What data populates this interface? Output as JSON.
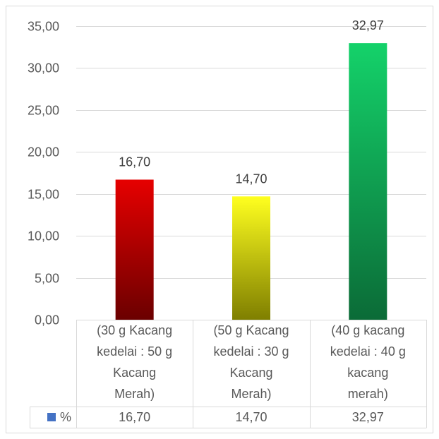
{
  "chart_data": {
    "type": "bar",
    "categories": [
      "(30 g Kacang kedelai : 50 g Kacang Merah)",
      "(50 g Kacang kedelai : 30 g Kacang Merah)",
      "(40 g kacang kedelai : 40 g kacang merah)"
    ],
    "series": [
      {
        "name": "%",
        "values": [
          16.7,
          14.7,
          32.97
        ],
        "value_labels": [
          "16,70",
          "14,70",
          "32,97"
        ]
      }
    ],
    "ylim": [
      0,
      35
    ],
    "y_ticks": [
      {
        "value": 0,
        "label": "0,00"
      },
      {
        "value": 5,
        "label": "5,00"
      },
      {
        "value": 10,
        "label": "10,00"
      },
      {
        "value": 15,
        "label": "15,00"
      },
      {
        "value": 20,
        "label": "20,00"
      },
      {
        "value": 25,
        "label": "25,00"
      },
      {
        "value": 30,
        "label": "30,00"
      },
      {
        "value": 35,
        "label": "35,00"
      }
    ],
    "grid": true,
    "data_table": true,
    "legend": "data-table-left",
    "legend_key_color": "#4472c4",
    "bar_colors": [
      {
        "top": "#e60000",
        "bottom": "#6b0000"
      },
      {
        "top": "#ffff1f",
        "bottom": "#7f7f00"
      },
      {
        "top": "#14d26a",
        "bottom": "#0b6b37"
      }
    ]
  }
}
